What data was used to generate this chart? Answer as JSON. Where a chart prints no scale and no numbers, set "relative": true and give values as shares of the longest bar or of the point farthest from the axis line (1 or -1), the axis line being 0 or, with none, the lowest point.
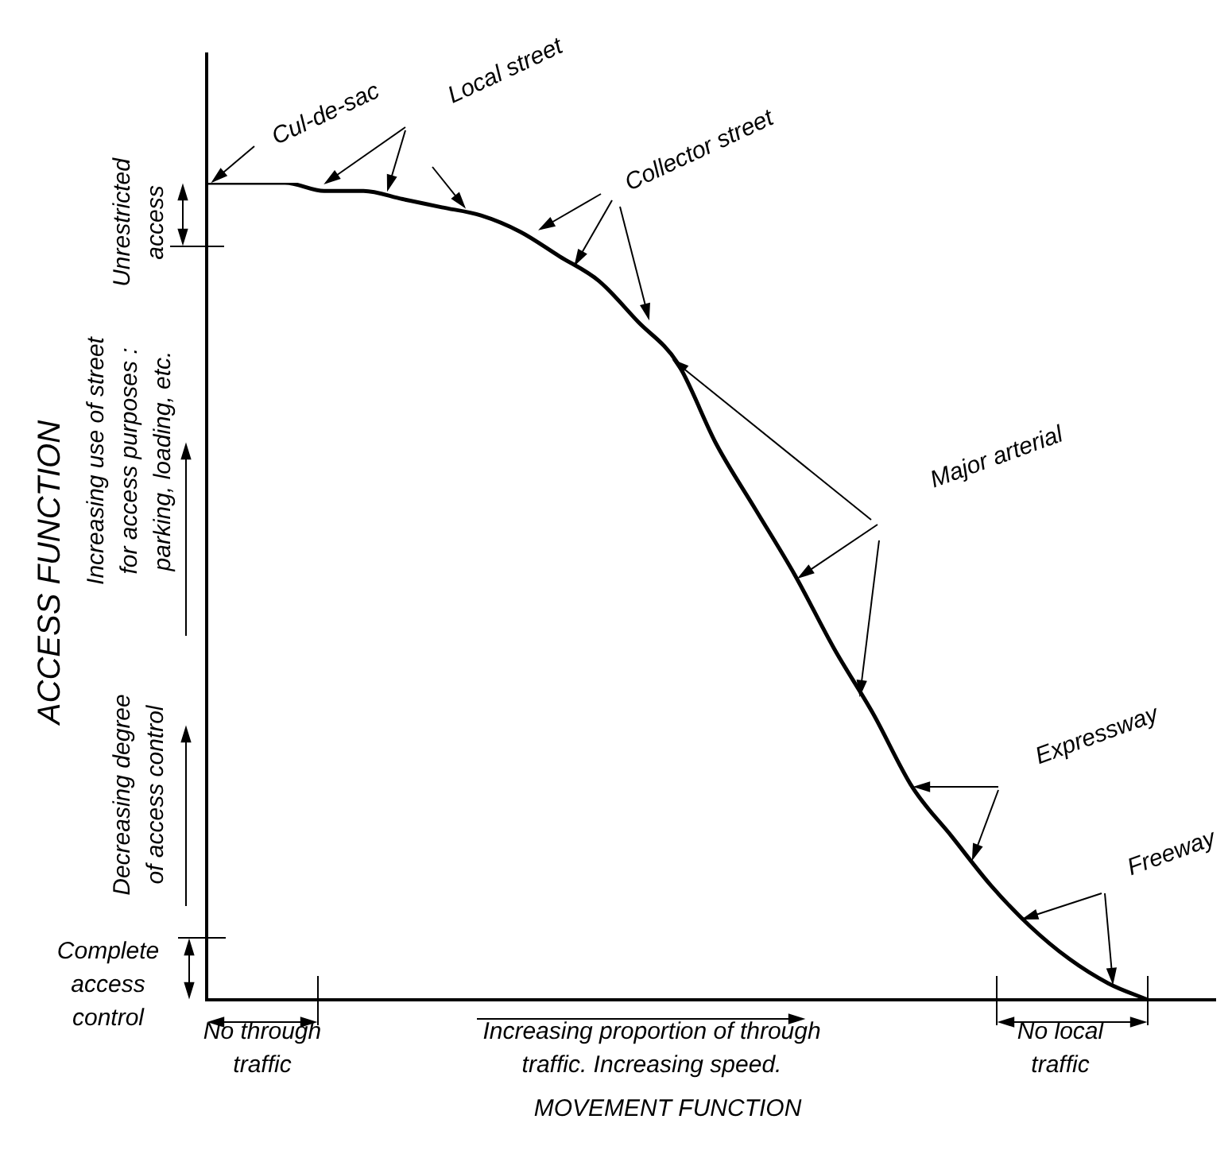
{
  "chart_data": {
    "type": "line",
    "relative": true,
    "xlabel": "MOVEMENT FUNCTION",
    "ylabel": "ACCESS FUNCTION",
    "categories": [
      null,
      null,
      null,
      null,
      null,
      null,
      null,
      null,
      null,
      null,
      null,
      null,
      null,
      null,
      null,
      null,
      null,
      null,
      null,
      null,
      null,
      null,
      null,
      null,
      null
    ],
    "values": [
      1.0,
      1.0,
      1.0,
      0.99,
      0.99,
      0.98,
      0.97,
      0.96,
      0.94,
      0.91,
      0.88,
      0.83,
      0.78,
      0.68,
      0.6,
      0.52,
      0.43,
      0.35,
      0.26,
      0.2,
      0.14,
      0.09,
      0.05,
      0.02,
      0
    ],
    "color": "#000000",
    "marker": "none",
    "line_style": "solid",
    "grid": false,
    "legend": false,
    "annotations": [
      "Cul-de-sac",
      "Local street",
      "Collector street",
      "Major arterial",
      "Expressway",
      "Freeway",
      "Unrestricted access",
      "Increasing use of street for access purposes : parking, loading, etc.",
      "Decreasing degree of access control",
      "Complete access control",
      "No through traffic",
      "Increasing proportion of through traffic. Increasing speed.",
      "No local traffic"
    ]
  }
}
